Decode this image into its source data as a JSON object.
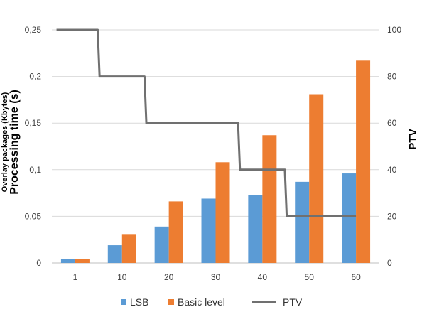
{
  "chart_data": {
    "type": "bar",
    "categories": [
      "1",
      "10",
      "20",
      "30",
      "40",
      "50",
      "60"
    ],
    "series": [
      {
        "name": "LSB",
        "kind": "bar",
        "axis": "left",
        "color": "#5B9BD5",
        "values": [
          0.004,
          0.019,
          0.039,
          0.069,
          0.073,
          0.087,
          0.096
        ]
      },
      {
        "name": "Basic level",
        "kind": "bar",
        "axis": "left",
        "color": "#ED7D31",
        "values": [
          0.004,
          0.031,
          0.066,
          0.108,
          0.137,
          0.181,
          0.217
        ]
      },
      {
        "name": "PTV",
        "kind": "line",
        "axis": "right",
        "color": "#707070",
        "values": [
          100,
          80,
          60,
          60,
          40,
          20,
          20
        ]
      }
    ],
    "ylabel_left_secondary": "Overlay packages (Kbytes)",
    "ylabel_left": "Processing time (s)",
    "ylabel_right": "PTV",
    "ylim_left": [
      0,
      0.25
    ],
    "ylim_right": [
      0,
      100
    ],
    "yticks_left": [
      "0",
      "0,05",
      "0,1",
      "0,15",
      "0,2",
      "0,25"
    ],
    "yticks_right": [
      "0",
      "20",
      "40",
      "60",
      "80",
      "100"
    ],
    "grid": true,
    "legend_position": "bottom"
  }
}
